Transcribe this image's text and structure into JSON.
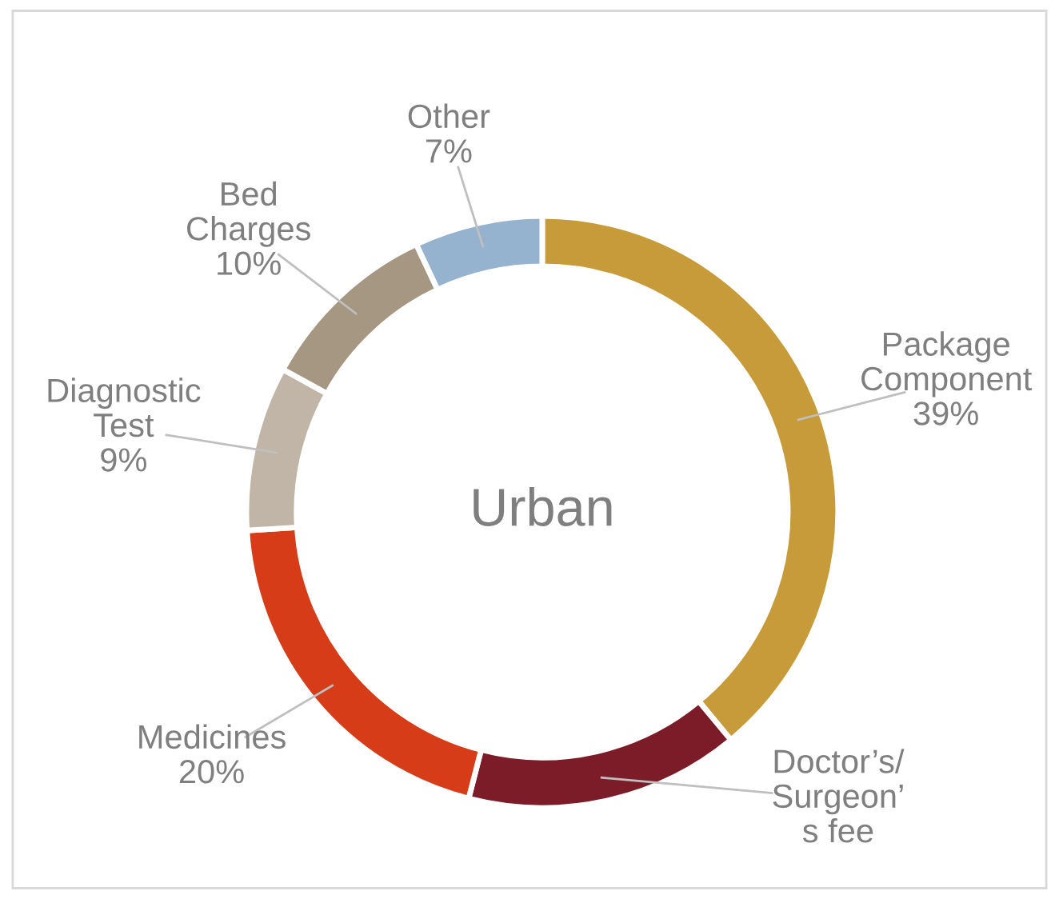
{
  "chart_data": {
    "type": "donut",
    "title": "Urban",
    "categories": [
      "Package\nComponent",
      "Doctor’s/\nSurgeon’\ns fee",
      "Medicines",
      "Diagnostic\nTest",
      "Bed\nCharges",
      "Other"
    ],
    "values": [
      39,
      15,
      20,
      9,
      10,
      7
    ],
    "value_labels": [
      "39%",
      null,
      "20%",
      "9%",
      "10%",
      "7%"
    ],
    "colors": [
      "#c89b3a",
      "#7b1c28",
      "#d63c17",
      "#c0b5a6",
      "#a69783",
      "#95b3cf"
    ],
    "legend": false
  }
}
